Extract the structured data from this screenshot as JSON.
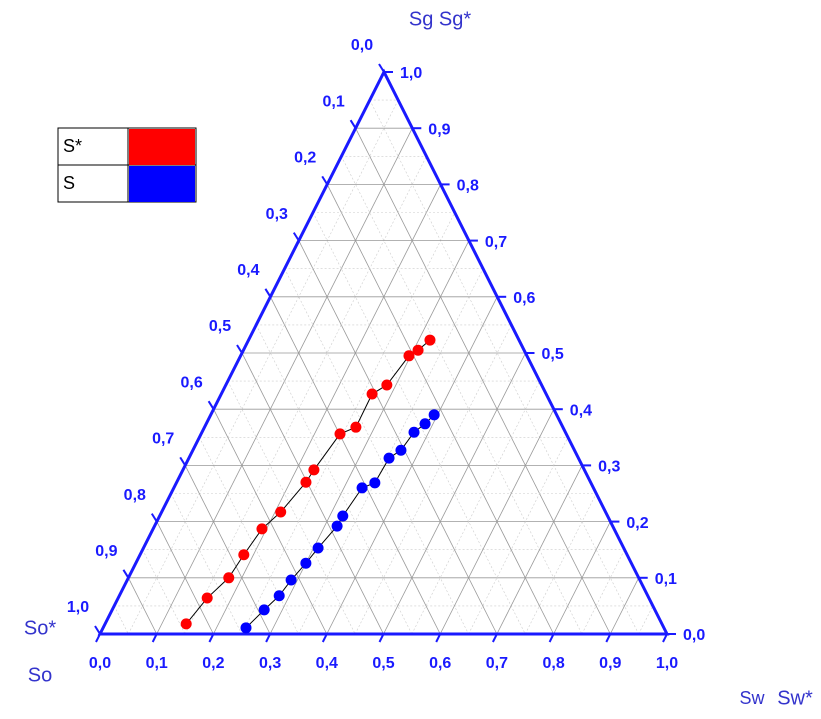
{
  "chart_data": {
    "type": "ternary",
    "top_label": "Sg Sg*",
    "left_labels": [
      "So*",
      "So"
    ],
    "bottom_labels": [
      "Sw",
      "Sw*"
    ],
    "axis_color": "#1a1aff",
    "grid": true,
    "bottom_axis": {
      "ticks": [
        {
          "value": 0,
          "label": "0,0"
        },
        {
          "value": 0.1,
          "label": "0,1"
        },
        {
          "value": 0.2,
          "label": "0,2"
        },
        {
          "value": 0.3,
          "label": "0,3"
        },
        {
          "value": 0.4,
          "label": "0,4"
        },
        {
          "value": 0.5,
          "label": "0,5"
        },
        {
          "value": 0.6,
          "label": "0,6"
        },
        {
          "value": 0.7,
          "label": "0,7"
        },
        {
          "value": 0.8,
          "label": "0,8"
        },
        {
          "value": 0.9,
          "label": "0,9"
        },
        {
          "value": 1,
          "label": "1,0"
        }
      ]
    },
    "right_axis": {
      "ticks": [
        {
          "value": 0,
          "label": "0,0"
        },
        {
          "value": 0.1,
          "label": "0,1"
        },
        {
          "value": 0.2,
          "label": "0,2"
        },
        {
          "value": 0.3,
          "label": "0,3"
        },
        {
          "value": 0.4,
          "label": "0,4"
        },
        {
          "value": 0.5,
          "label": "0,5"
        },
        {
          "value": 0.6,
          "label": "0,6"
        },
        {
          "value": 0.7,
          "label": "0,7"
        },
        {
          "value": 0.8,
          "label": "0,8"
        },
        {
          "value": 0.9,
          "label": "0,9"
        },
        {
          "value": 1,
          "label": "1,0"
        }
      ]
    },
    "left_axis": {
      "ticks": [
        {
          "value": 0,
          "label": "0,0"
        },
        {
          "value": 0.1,
          "label": "0,1"
        },
        {
          "value": 0.2,
          "label": "0,2"
        },
        {
          "value": 0.3,
          "label": "0,3"
        },
        {
          "value": 0.4,
          "label": "0,4"
        },
        {
          "value": 0.5,
          "label": "0,5"
        },
        {
          "value": 0.6,
          "label": "0,6"
        },
        {
          "value": 0.7,
          "label": "0,7"
        },
        {
          "value": 0.8,
          "label": "0,8"
        },
        {
          "value": 0.9,
          "label": "0,9"
        },
        {
          "value": 1,
          "label": "1,0"
        }
      ]
    },
    "series": [
      {
        "name": "S*",
        "color": "#ff0000",
        "sw": [
          0.143,
          0.157,
          0.177,
          0.183,
          0.192,
          0.21,
          0.228,
          0.231,
          0.245,
          0.267,
          0.266,
          0.284,
          0.297,
          0.308,
          0.32
        ],
        "sg": [
          0.018,
          0.064,
          0.1,
          0.141,
          0.187,
          0.217,
          0.27,
          0.292,
          0.356,
          0.368,
          0.427,
          0.443,
          0.495,
          0.505,
          0.523
        ]
      },
      {
        "name": "S",
        "color": "#0000ff",
        "sw": [
          0.252,
          0.268,
          0.282,
          0.289,
          0.3,
          0.308,
          0.322,
          0.323,
          0.332,
          0.35,
          0.353,
          0.367,
          0.374,
          0.386,
          0.394
        ],
        "sg": [
          0.011,
          0.043,
          0.068,
          0.096,
          0.126,
          0.153,
          0.192,
          0.21,
          0.26,
          0.269,
          0.313,
          0.327,
          0.359,
          0.374,
          0.39
        ]
      }
    ]
  }
}
